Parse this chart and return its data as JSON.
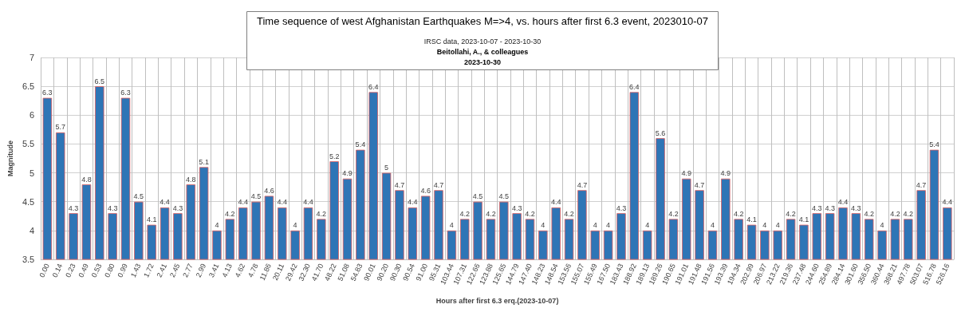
{
  "chart_data": {
    "type": "bar",
    "title": "Time sequence of west Afghanistan Earthquakes M=>4, vs. hours after first 6.3 event, 2023010-07",
    "subtitle": "IRSC data, 2023-10-07 - 2023-10-30",
    "annotations": [
      "Beitollahi, A., & colleagues",
      "2023-10-30"
    ],
    "xlabel": "Hours after first 6.3 erq.(2023-10-07)",
    "ylabel": "Magnitude",
    "categories": [
      "0.00",
      "0.14",
      "0.23",
      "0.49",
      "0.53",
      "0.80",
      "0.99",
      "1.43",
      "1.72",
      "2.41",
      "2.45",
      "2.77",
      "2.99",
      "3.41",
      "4.13",
      "4.62",
      "4.78",
      "11.86",
      "20.11",
      "29.42",
      "32.30",
      "41.70",
      "48.22",
      "51.08",
      "54.83",
      "90.01",
      "90.20",
      "90.30",
      "90.54",
      "91.00",
      "95.31",
      "103.44",
      "107.31",
      "122.66",
      "123.88",
      "125.65",
      "144.79",
      "147.40",
      "148.23",
      "148.54",
      "153.56",
      "155.07",
      "155.49",
      "167.50",
      "183.43",
      "188.92",
      "189.13",
      "189.26",
      "190.65",
      "191.01",
      "191.48",
      "191.56",
      "193.39",
      "194.34",
      "202.99",
      "206.97",
      "213.22",
      "219.36",
      "237.48",
      "244.60",
      "254.89",
      "284.14",
      "301.60",
      "356.50",
      "360.44",
      "368.21",
      "497.78",
      "503.07",
      "516.78",
      "526.16"
    ],
    "values": [
      6.3,
      5.7,
      4.3,
      4.8,
      6.5,
      4.3,
      6.3,
      4.5,
      4.1,
      4.4,
      4.3,
      4.8,
      5.1,
      4,
      4.2,
      4.4,
      4.5,
      4.6,
      4.4,
      4,
      4.4,
      4.2,
      5.2,
      4.9,
      5.4,
      6.4,
      5,
      4.7,
      4.4,
      4.6,
      4.7,
      4,
      4.2,
      4.5,
      4.2,
      4.5,
      4.3,
      4.2,
      4,
      4.4,
      4.2,
      4.7,
      4,
      4,
      4.3,
      6.4,
      4,
      5.6,
      4.2,
      4.9,
      4.7,
      4,
      4.9,
      4.2,
      4.1,
      4,
      4,
      4.2,
      4.1,
      4.3,
      4.3,
      4.4,
      4.3,
      4.2,
      4,
      4.2,
      4.2,
      4.7,
      5.4,
      4.4
    ],
    "color": "#2e75b6",
    "ylim": [
      3.5,
      7
    ],
    "yticks": [
      3.5,
      4,
      4.5,
      5,
      5.5,
      6,
      6.5,
      7
    ],
    "grid": true,
    "data_labels": true
  }
}
